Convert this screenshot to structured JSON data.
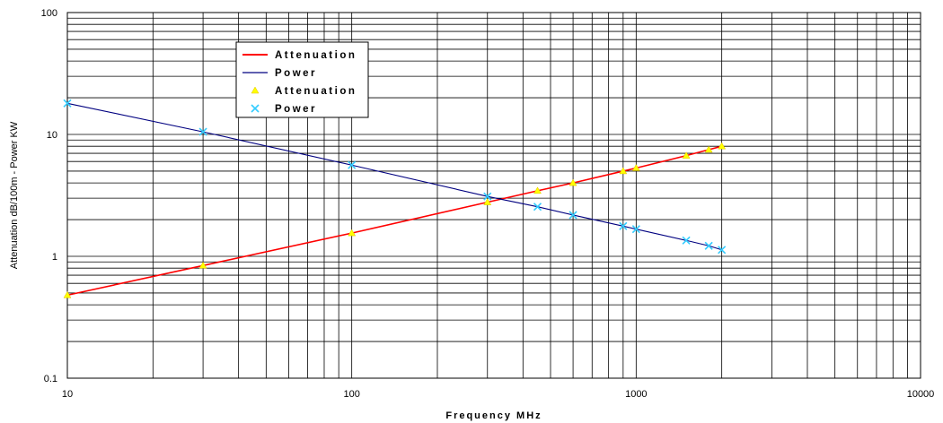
{
  "chart_data": {
    "type": "line",
    "title": "",
    "xlabel": "Frequency MHz",
    "ylabel": "Attenuation dB/100m - Power KW",
    "x_scale": "log",
    "y_scale": "log",
    "xlim": [
      10,
      10000
    ],
    "ylim": [
      0.1,
      100
    ],
    "x_ticks": [
      "10",
      "100",
      "1000",
      "10000"
    ],
    "y_ticks": [
      "0.1",
      "1",
      "10",
      "100"
    ],
    "grid": true,
    "legend_position": "top-left",
    "series": [
      {
        "name": "Attenuation",
        "kind": "line",
        "color": "#ff0000",
        "x": [
          10,
          30,
          100,
          300,
          450,
          600,
          900,
          1000,
          1500,
          1800,
          2000
        ],
        "y": [
          0.48,
          0.84,
          1.55,
          2.78,
          3.45,
          4.0,
          5.0,
          5.3,
          6.7,
          7.5,
          8.0
        ]
      },
      {
        "name": "Power",
        "kind": "line",
        "color": "#000080",
        "x": [
          10,
          30,
          100,
          300,
          450,
          600,
          900,
          1000,
          1500,
          1800,
          2000
        ],
        "y": [
          18.0,
          10.5,
          5.6,
          3.1,
          2.55,
          2.18,
          1.77,
          1.67,
          1.35,
          1.22,
          1.13
        ]
      },
      {
        "name": "Attenuation",
        "kind": "marker",
        "marker": "triangle",
        "color": "#ffff00",
        "x": [
          10,
          30,
          100,
          300,
          450,
          600,
          900,
          1000,
          1500,
          1800,
          2000
        ],
        "y": [
          0.48,
          0.84,
          1.55,
          2.78,
          3.45,
          4.0,
          5.0,
          5.3,
          6.7,
          7.5,
          8.0
        ]
      },
      {
        "name": "Power",
        "kind": "marker",
        "marker": "x",
        "color": "#33ccff",
        "x": [
          10,
          30,
          100,
          300,
          450,
          600,
          900,
          1000,
          1500,
          1800,
          2000
        ],
        "y": [
          18.0,
          10.5,
          5.6,
          3.1,
          2.55,
          2.18,
          1.77,
          1.67,
          1.35,
          1.22,
          1.13
        ]
      }
    ]
  }
}
